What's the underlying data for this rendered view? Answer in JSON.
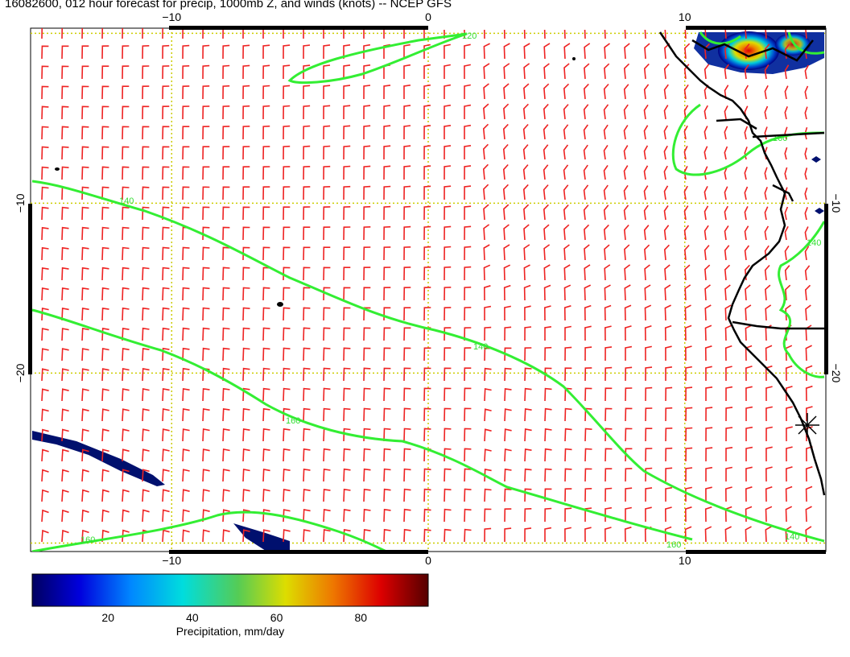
{
  "title": "16082600, 012 hour forecast for precip, 1000mb Z, and winds (knots) -- NCEP GFS",
  "map": {
    "lon_range": [
      -15.5,
      15.5
    ],
    "lat_range": [
      -30.5,
      0.3
    ],
    "lon_ticks": [
      -10,
      0,
      10
    ],
    "lat_ticks": [
      -10,
      -20
    ],
    "lon_tick_labels": [
      "−10",
      "0",
      "10"
    ],
    "lat_tick_labels": [
      "−10",
      "−20"
    ],
    "gridline_color": "#cccc00",
    "contour_color": "#33ee33",
    "wind_barb_color": "#ee2222",
    "coast_color": "#000000",
    "contour_labels": [
      "140",
      "160",
      "120",
      "160",
      "140",
      "160",
      "140",
      "160",
      "140"
    ]
  },
  "colorbar": {
    "label": "Precipitation, mm/day",
    "range": [
      2,
      96
    ],
    "ticks": [
      20,
      40,
      60,
      80
    ],
    "tick_labels": [
      "20",
      "40",
      "60",
      "80"
    ]
  }
}
